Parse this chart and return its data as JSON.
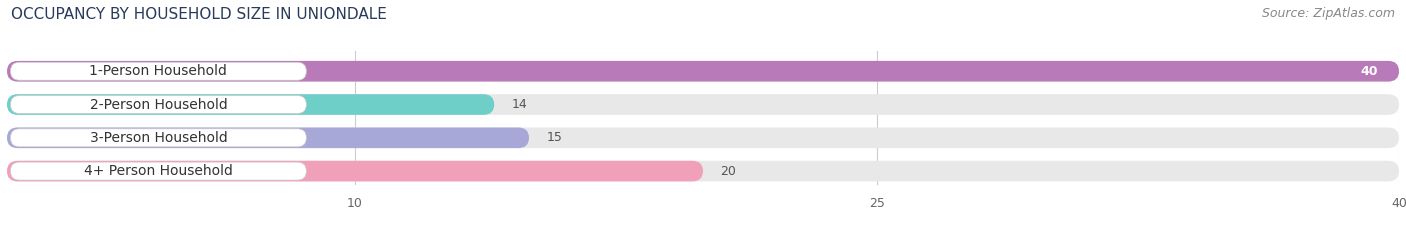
{
  "title": "OCCUPANCY BY HOUSEHOLD SIZE IN UNIONDALE",
  "source": "Source: ZipAtlas.com",
  "categories": [
    "1-Person Household",
    "2-Person Household",
    "3-Person Household",
    "4+ Person Household"
  ],
  "values": [
    40,
    14,
    15,
    20
  ],
  "bar_colors": [
    "#b87ab8",
    "#6ecec8",
    "#a8a8d8",
    "#f0a0b8"
  ],
  "bar_bg_color": "#e8e8e8",
  "xlim": [
    0,
    40
  ],
  "xticks": [
    10,
    25,
    40
  ],
  "background_color": "#ffffff",
  "title_fontsize": 11,
  "source_fontsize": 9,
  "label_fontsize": 10,
  "value_fontsize": 9,
  "title_color": "#2a3a5a",
  "source_color": "#888888",
  "label_color": "#333333",
  "value_color_inside": "#ffffff",
  "value_color_outside": "#555555"
}
